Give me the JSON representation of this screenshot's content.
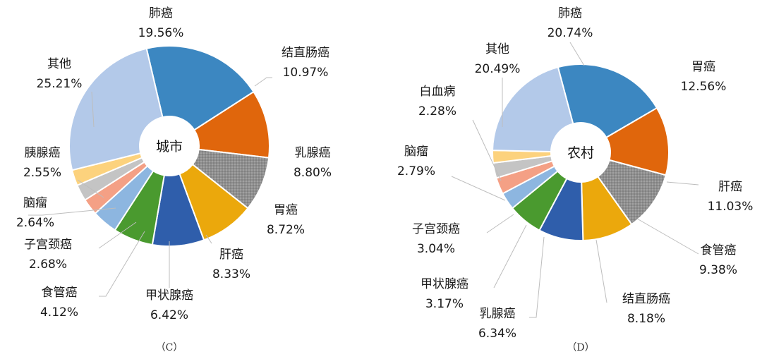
{
  "chart_data": [
    {
      "type": "pie",
      "center_label": "城市",
      "caption": "（C）",
      "slices": [
        {
          "name": "肺癌",
          "value": 19.56,
          "label": "19.56%",
          "color": "#3c87c1"
        },
        {
          "name": "结直肠癌",
          "value": 10.97,
          "label": "10.97%",
          "color": "#e0660c"
        },
        {
          "name": "乳腺癌",
          "value": 8.8,
          "label": "8.80%",
          "color": "#9a9a9a",
          "pattern": "dots"
        },
        {
          "name": "胃癌",
          "value": 8.72,
          "label": "8.72%",
          "color": "#eba80c"
        },
        {
          "name": "肝癌",
          "value": 8.33,
          "label": "8.33%",
          "color": "#2f5eab"
        },
        {
          "name": "甲状腺癌",
          "value": 6.42,
          "label": "6.42%",
          "color": "#4a9a2f"
        },
        {
          "name": "食管癌",
          "value": 4.12,
          "label": "4.12%",
          "color": "#8db6e0"
        },
        {
          "name": "子宫颈癌",
          "value": 2.68,
          "label": "2.68%",
          "color": "#f4a085"
        },
        {
          "name": "脑瘤",
          "value": 2.64,
          "label": "2.64%",
          "color": "#c4c4c4"
        },
        {
          "name": "胰腺癌",
          "value": 2.55,
          "label": "2.55%",
          "color": "#fcd27d"
        },
        {
          "name": "其他",
          "value": 25.21,
          "label": "25.21%",
          "color": "#b3c9e9"
        }
      ]
    },
    {
      "type": "pie",
      "center_label": "农村",
      "caption": "（D）",
      "slices": [
        {
          "name": "肺癌",
          "value": 20.74,
          "label": "20.74%",
          "color": "#3c87c1"
        },
        {
          "name": "胃癌",
          "value": 12.56,
          "label": "12.56%",
          "color": "#e0660c"
        },
        {
          "name": "肝癌",
          "value": 11.03,
          "label": "11.03%",
          "color": "#9a9a9a",
          "pattern": "dots"
        },
        {
          "name": "食管癌",
          "value": 9.38,
          "label": "9.38%",
          "color": "#eba80c"
        },
        {
          "name": "结直肠癌",
          "value": 8.18,
          "label": "8.18%",
          "color": "#2f5eab"
        },
        {
          "name": "乳腺癌",
          "value": 6.34,
          "label": "6.34%",
          "color": "#4a9a2f"
        },
        {
          "name": "甲状腺癌",
          "value": 3.17,
          "label": "3.17%",
          "color": "#8db6e0"
        },
        {
          "name": "子宫颈癌",
          "value": 3.04,
          "label": "3.04%",
          "color": "#f4a085"
        },
        {
          "name": "脑瘤",
          "value": 2.79,
          "label": "2.79%",
          "color": "#c4c4c4"
        },
        {
          "name": "白血病",
          "value": 2.28,
          "label": "2.28%",
          "color": "#fcd27d"
        },
        {
          "name": "其他",
          "value": 20.49,
          "label": "20.49%",
          "color": "#b3c9e9"
        }
      ]
    }
  ]
}
